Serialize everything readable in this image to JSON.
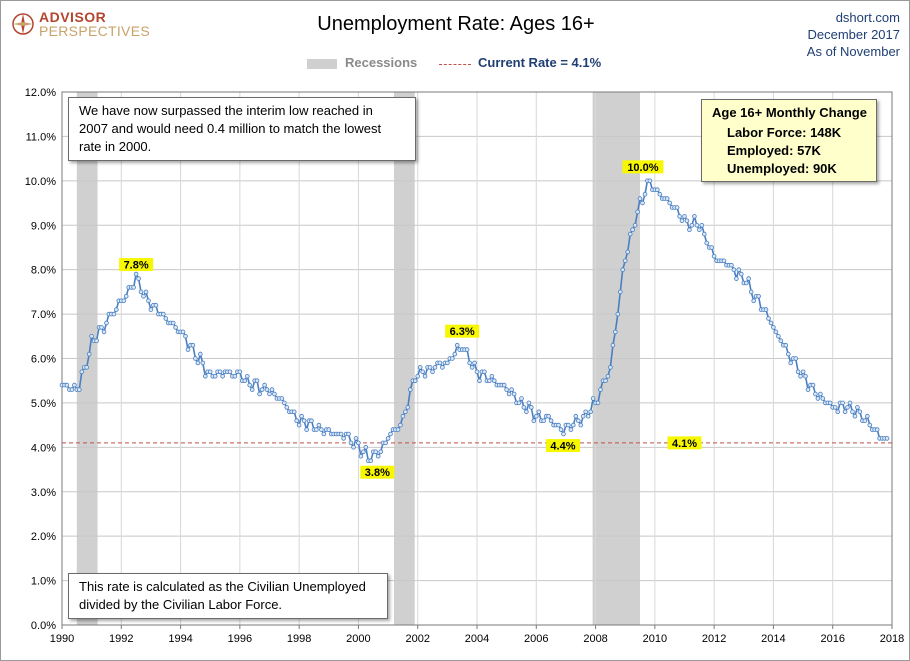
{
  "header": {
    "logo_line1": "ADVISOR",
    "logo_line2": "PERSPECTIVES",
    "title": "Unemployment Rate: Ages 16+",
    "source": "dshort.com",
    "date": "December 2017",
    "as_of": "As of November"
  },
  "legend": {
    "recessions": "Recessions",
    "current_rate": "Current Rate = 4.1%"
  },
  "notes": {
    "top": "We have now surpassed the interim low reached in 2007 and would need 0.4 million to match the lowest rate in 2000.",
    "bottom": "This rate is calculated as the Civilian Unemployed divided by the Civilian Labor Force."
  },
  "monthly_change": {
    "title": "Age 16+ Monthly Change",
    "labor_force": "Labor Force:  148K",
    "employed": "Employed:  57K",
    "unemployed": "Unemployed:  90K"
  },
  "colors": {
    "series": "#4a7fc1",
    "marker_fill": "#dbe8f7",
    "recession": "#d0d0d0",
    "current_line": "#c0504d",
    "callout_fill": "#f7f700"
  },
  "chart_data": {
    "type": "line",
    "title": "Unemployment Rate: Ages 16+",
    "xlim": [
      1990,
      2018
    ],
    "ylim": [
      0,
      12
    ],
    "y_ticks": [
      "0.0%",
      "1.0%",
      "2.0%",
      "3.0%",
      "4.0%",
      "5.0%",
      "6.0%",
      "7.0%",
      "8.0%",
      "9.0%",
      "10.0%",
      "11.0%",
      "12.0%"
    ],
    "x_ticks": [
      "1990",
      "1992",
      "1994",
      "1996",
      "1998",
      "2000",
      "2002",
      "2004",
      "2006",
      "2008",
      "2010",
      "2012",
      "2014",
      "2016",
      "2018"
    ],
    "grid": true,
    "legend_position": "top",
    "recessions": [
      [
        1990.5,
        1991.2
      ],
      [
        2001.2,
        2001.9
      ],
      [
        2007.9,
        2009.5
      ]
    ],
    "current_rate": 4.1,
    "series": [
      {
        "name": "Unemployment Rate",
        "anchors": [
          [
            1990.0,
            5.4
          ],
          [
            1990.5,
            5.3
          ],
          [
            1990.75,
            5.7
          ],
          [
            1991.0,
            6.4
          ],
          [
            1991.5,
            6.8
          ],
          [
            1992.0,
            7.3
          ],
          [
            1992.5,
            7.8
          ],
          [
            1993.0,
            7.2
          ],
          [
            1993.5,
            6.9
          ],
          [
            1994.0,
            6.6
          ],
          [
            1994.5,
            6.1
          ],
          [
            1995.0,
            5.6
          ],
          [
            1995.5,
            5.7
          ],
          [
            1996.0,
            5.6
          ],
          [
            1996.5,
            5.4
          ],
          [
            1997.0,
            5.3
          ],
          [
            1997.5,
            5.0
          ],
          [
            1998.0,
            4.6
          ],
          [
            1998.5,
            4.5
          ],
          [
            1999.0,
            4.3
          ],
          [
            1999.5,
            4.3
          ],
          [
            2000.0,
            4.0
          ],
          [
            2000.3,
            3.8
          ],
          [
            2000.75,
            3.9
          ],
          [
            2001.0,
            4.2
          ],
          [
            2001.5,
            4.6
          ],
          [
            2001.9,
            5.6
          ],
          [
            2002.5,
            5.8
          ],
          [
            2003.0,
            5.9
          ],
          [
            2003.5,
            6.3
          ],
          [
            2004.0,
            5.7
          ],
          [
            2004.5,
            5.5
          ],
          [
            2005.0,
            5.3
          ],
          [
            2005.5,
            5.0
          ],
          [
            2006.0,
            4.7
          ],
          [
            2006.5,
            4.6
          ],
          [
            2006.9,
            4.4
          ],
          [
            2007.5,
            4.6
          ],
          [
            2008.0,
            5.0
          ],
          [
            2008.5,
            5.8
          ],
          [
            2009.0,
            8.3
          ],
          [
            2009.5,
            9.5
          ],
          [
            2009.8,
            10.0
          ],
          [
            2010.0,
            9.8
          ],
          [
            2010.5,
            9.5
          ],
          [
            2011.0,
            9.1
          ],
          [
            2011.5,
            9.0
          ],
          [
            2012.0,
            8.3
          ],
          [
            2012.5,
            8.1
          ],
          [
            2013.0,
            7.8
          ],
          [
            2013.5,
            7.3
          ],
          [
            2014.0,
            6.7
          ],
          [
            2014.5,
            6.1
          ],
          [
            2015.0,
            5.6
          ],
          [
            2015.5,
            5.2
          ],
          [
            2016.0,
            4.9
          ],
          [
            2016.5,
            4.9
          ],
          [
            2017.0,
            4.7
          ],
          [
            2017.4,
            4.4
          ],
          [
            2017.85,
            4.1
          ]
        ],
        "start": "1990-01",
        "end": "2017-11",
        "points": 335
      }
    ],
    "annotations": [
      {
        "label": "7.8%",
        "x": 1992.5,
        "y": 7.8
      },
      {
        "label": "3.8%",
        "x": 2000.3,
        "y": 3.8
      },
      {
        "label": "6.3%",
        "x": 2003.5,
        "y": 6.3
      },
      {
        "label": "4.4%",
        "x": 2006.9,
        "y": 4.4
      },
      {
        "label": "10.0%",
        "x": 2009.8,
        "y": 10.0
      },
      {
        "label": "4.1%",
        "x": 2011.0,
        "y": 4.1
      }
    ]
  }
}
